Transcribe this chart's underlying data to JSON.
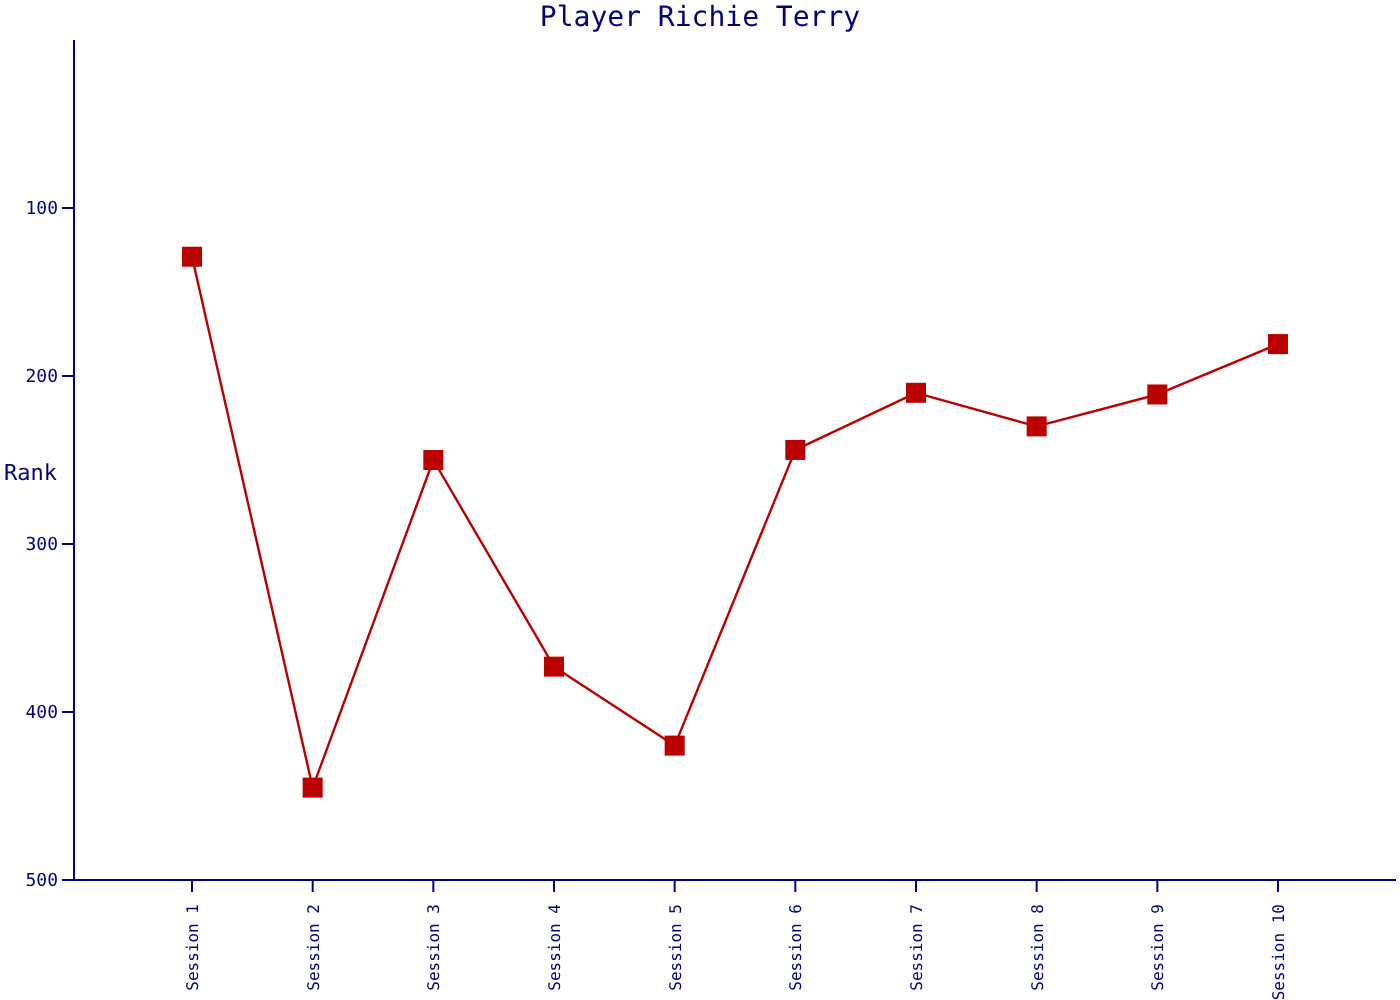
{
  "chart_data": {
    "type": "line",
    "title": "Player Richie Terry",
    "ylabel": "Rank",
    "categories": [
      "Session 1",
      "Session 2",
      "Session 3",
      "Session 4",
      "Session 5",
      "Session 6",
      "Session 7",
      "Session 8",
      "Session 9",
      "Session 10"
    ],
    "series": [
      {
        "color": "#bb0000",
        "values": [
          129,
          445,
          250,
          373,
          420,
          244,
          210,
          230,
          211,
          181
        ]
      }
    ],
    "ylim": [
      500,
      0
    ],
    "yticks": [
      100,
      200,
      300,
      400,
      500
    ],
    "marker": "square",
    "line_style": "solid",
    "grid": false,
    "legend": false
  }
}
